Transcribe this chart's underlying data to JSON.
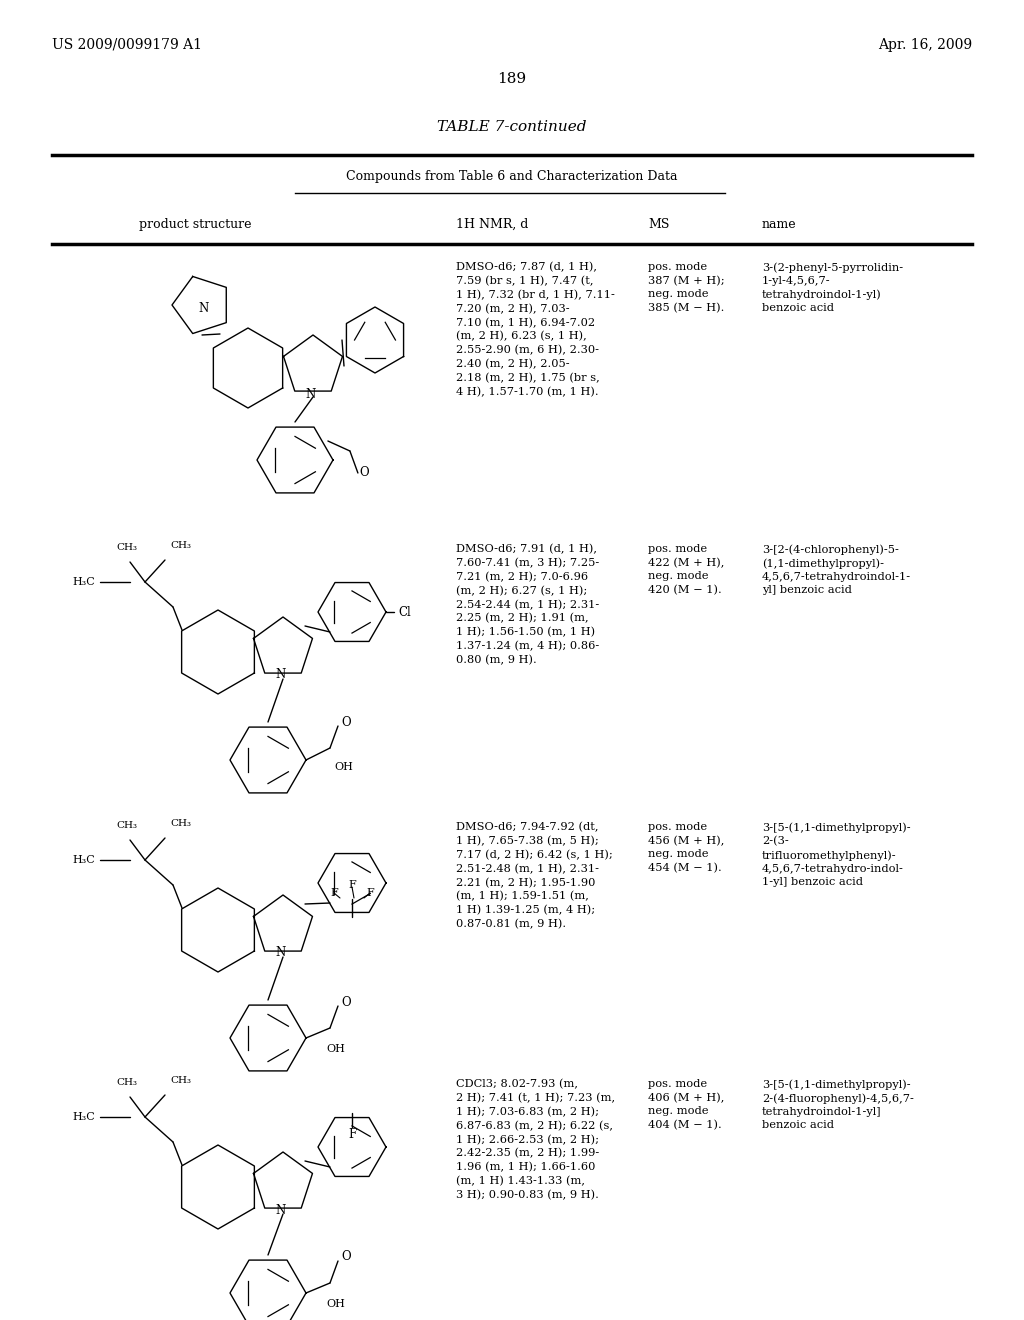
{
  "background_color": "#ffffff",
  "page_header_left": "US 2009/0099179 A1",
  "page_header_right": "Apr. 16, 2009",
  "page_number": "189",
  "table_title": "TABLE 7-continued",
  "table_subtitle": "Compounds from Table 6 and Characterization Data",
  "rows": [
    {
      "nmr": "DMSO-d6; 7.87 (d, 1 H),\n7.59 (br s, 1 H), 7.47 (t,\n1 H), 7.32 (br d, 1 H), 7.11-\n7.20 (m, 2 H), 7.03-\n7.10 (m, 1 H), 6.94-7.02\n(m, 2 H), 6.23 (s, 1 H),\n2.55-2.90 (m, 6 H), 2.30-\n2.40 (m, 2 H), 2.05-\n2.18 (m, 2 H), 1.75 (br s,\n4 H), 1.57-1.70 (m, 1 H).",
      "ms": "pos. mode\n387 (M + H);\nneg. mode\n385 (M − H).",
      "name": "3-(2-phenyl-5-pyrrolidin-\n1-yl-4,5,6,7-\ntetrahydroindol-1-yl)\nbenzoic acid"
    },
    {
      "nmr": "DMSO-d6; 7.91 (d, 1 H),\n7.60-7.41 (m, 3 H); 7.25-\n7.21 (m, 2 H); 7.0-6.96\n(m, 2 H); 6.27 (s, 1 H);\n2.54-2.44 (m, 1 H); 2.31-\n2.25 (m, 2 H); 1.91 (m,\n1 H); 1.56-1.50 (m, 1 H)\n1.37-1.24 (m, 4 H); 0.86-\n0.80 (m, 9 H).",
      "ms": "pos. mode\n422 (M + H),\nneg. mode\n420 (M − 1).",
      "name": "3-[2-(4-chlorophenyl)-5-\n(1,1-dimethylpropyl)-\n4,5,6,7-tetrahydroindol-1-\nyl] benzoic acid"
    },
    {
      "nmr": "DMSO-d6; 7.94-7.92 (dt,\n1 H), 7.65-7.38 (m, 5 H);\n7.17 (d, 2 H); 6.42 (s, 1 H);\n2.51-2.48 (m, 1 H), 2.31-\n2.21 (m, 2 H); 1.95-1.90\n(m, 1 H); 1.59-1.51 (m,\n1 H) 1.39-1.25 (m, 4 H);\n0.87-0.81 (m, 9 H).",
      "ms": "pos. mode\n456 (M + H),\nneg. mode\n454 (M − 1).",
      "name": "3-[5-(1,1-dimethylpropyl)-\n2-(3-\ntrifluoromethylphenyl)-\n4,5,6,7-tetrahydro-indol-\n1-yl] benzoic acid"
    },
    {
      "nmr": "CDCl3; 8.02-7.93 (m,\n2 H); 7.41 (t, 1 H); 7.23 (m,\n1 H); 7.03-6.83 (m, 2 H);\n6.87-6.83 (m, 2 H); 6.22 (s,\n1 H); 2.66-2.53 (m, 2 H);\n2.42-2.35 (m, 2 H); 1.99-\n1.96 (m, 1 H); 1.66-1.60\n(m, 1 H) 1.43-1.33 (m,\n3 H); 0.90-0.83 (m, 9 H).",
      "ms": "pos. mode\n406 (M + H),\nneg. mode\n404 (M − 1).",
      "name": "3-[5-(1,1-dimethylpropyl)-\n2-(4-fluorophenyl)-4,5,6,7-\ntetrahydroindol-1-yl]\nbenzoic acid"
    }
  ]
}
